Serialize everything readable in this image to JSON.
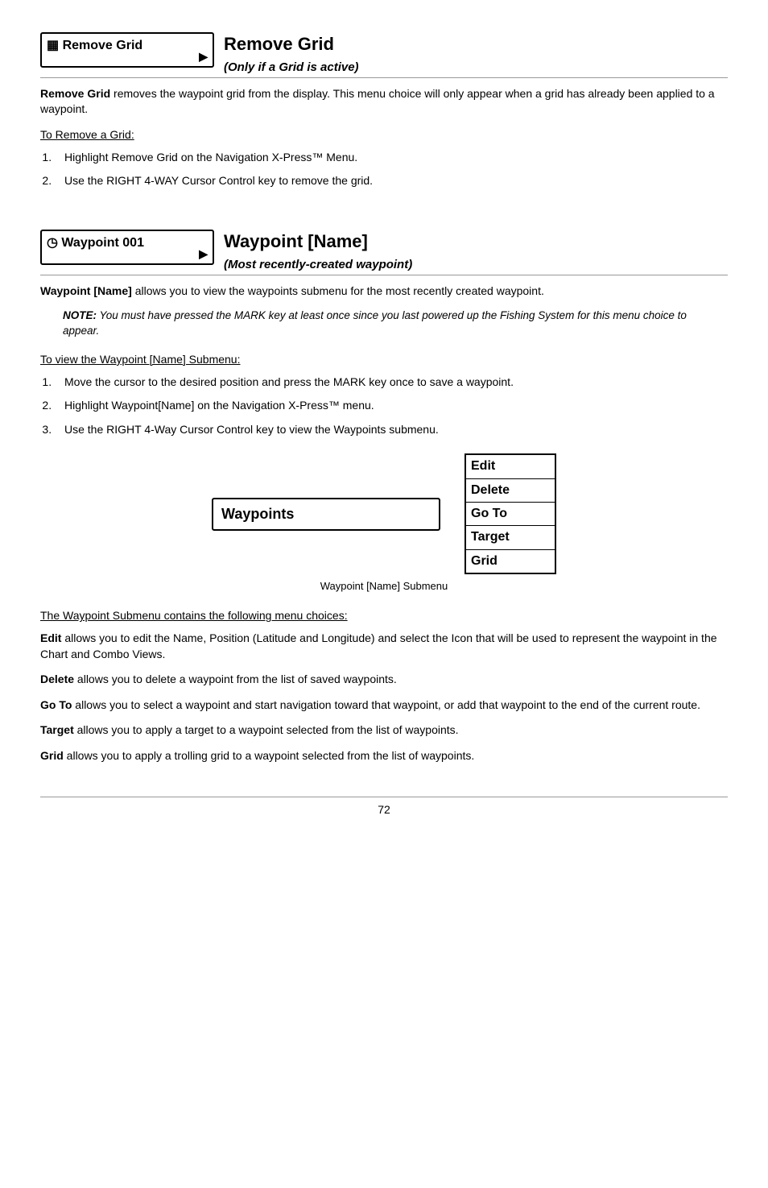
{
  "removeGrid": {
    "menuLabel": "Remove Grid",
    "title": "Remove Grid",
    "subtitle": "(Only if a Grid is active)",
    "intro_b": "Remove Grid",
    "intro": " removes the waypoint grid from the display. This menu choice will only appear when a grid has already been applied to a waypoint.",
    "howTo": "To Remove a Grid:",
    "steps": [
      "Highlight Remove Grid on the Navigation X-Press™ Menu.",
      "Use the RIGHT 4-WAY Cursor Control key to remove the grid."
    ]
  },
  "waypoint": {
    "menuLabel": "Waypoint 001",
    "title": "Waypoint [Name]",
    "subtitle": "(Most recently-created waypoint)",
    "intro_b": "Waypoint [Name]",
    "intro": " allows you to view the waypoints submenu for the most recently created waypoint.",
    "note_b": "NOTE:",
    "note": " You must have pressed the MARK key at least once since you last powered up the Fishing System for this menu choice to appear.",
    "howTo": "To view the Waypoint [Name] Submenu:",
    "steps": [
      "Move the cursor to the desired position and press the MARK key once to save a waypoint.",
      "Highlight Waypoint[Name] on the Navigation X-Press™ menu.",
      "Use the RIGHT 4-Way Cursor Control key to view the Waypoints submenu."
    ],
    "wpBox": "Waypoints",
    "menu": [
      "Edit",
      "Delete",
      "Go To",
      "Target",
      "Grid"
    ],
    "caption": "Waypoint [Name] Submenu",
    "choicesHeader": "The Waypoint Submenu contains the following menu choices:",
    "edit_b": "Edit",
    "edit": " allows you to edit the Name, Position (Latitude and Longitude) and select the Icon that will be used to represent the waypoint in the Chart and Combo Views.",
    "delete_b": "Delete",
    "delete": " allows you to delete a waypoint from the list of saved waypoints.",
    "goto_b": "Go To",
    "goto": " allows you to select a waypoint and start navigation toward that waypoint, or add that waypoint to the end of the current route.",
    "target_b": "Target",
    "target": " allows you to apply a target to a waypoint selected from the list of waypoints.",
    "grid_b": "Grid",
    "grid": " allows you to apply a trolling grid to a waypoint selected from the list of waypoints."
  },
  "pageNumber": "72",
  "icons": {
    "gridIcon": "▦",
    "clockIcon": "◷",
    "arrow": "▶"
  }
}
